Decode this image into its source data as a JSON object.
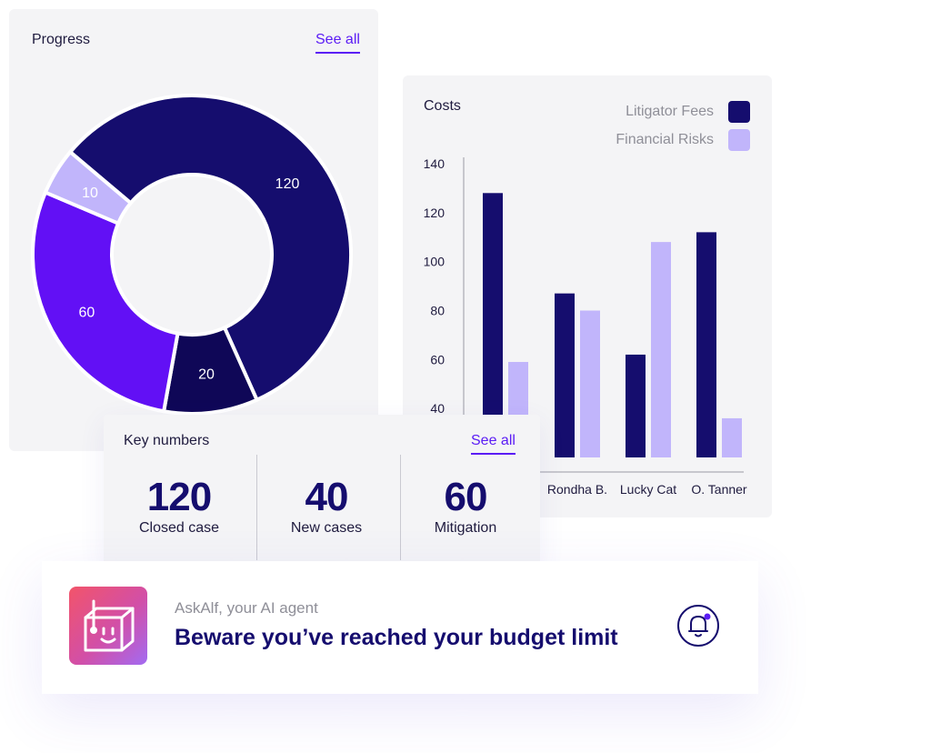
{
  "progress": {
    "title": "Progress",
    "see_all_label": "See all"
  },
  "costs": {
    "title": "Costs"
  },
  "key_numbers": {
    "title": "Key numbers",
    "see_all_label": "See all",
    "items": [
      {
        "value": "120",
        "label": "Closed case"
      },
      {
        "value": "40",
        "label": "New cases"
      },
      {
        "value": "60",
        "label": "Mitigation"
      }
    ]
  },
  "notification": {
    "agent_name": "AskAlf, your AI agent",
    "message": "Beware you’ve reached your budget limit",
    "icon": "bell-icon",
    "logo_icon": "robot-icon"
  },
  "colors": {
    "navy": "#150d6e",
    "dark_navy": "#0f0757",
    "violet": "#6210f5",
    "lavender": "#c1b5fb",
    "accent": "#5b1cf5"
  },
  "chart_data": [
    {
      "type": "pie",
      "values": [
        120,
        20,
        60,
        10
      ],
      "labels": [
        "120",
        "20",
        "60",
        "10"
      ],
      "colors": [
        "#150d6e",
        "#0f0757",
        "#6210f5",
        "#c1b5fb"
      ]
    },
    {
      "type": "bar",
      "categories": [
        "",
        "Rondha B.",
        "Lucky Cat",
        "O. Tanner"
      ],
      "series": [
        {
          "name": "Litigator Fees",
          "values": [
            128,
            87,
            62,
            112
          ],
          "color": "#150d6e"
        },
        {
          "name": "Financial Risks",
          "values": [
            59,
            80,
            108,
            36
          ],
          "color": "#c1b5fb"
        }
      ],
      "y_ticks": [
        40,
        60,
        80,
        100,
        120,
        140
      ],
      "ylim": [
        20,
        140
      ],
      "legend": "top-right",
      "grid": false
    }
  ]
}
